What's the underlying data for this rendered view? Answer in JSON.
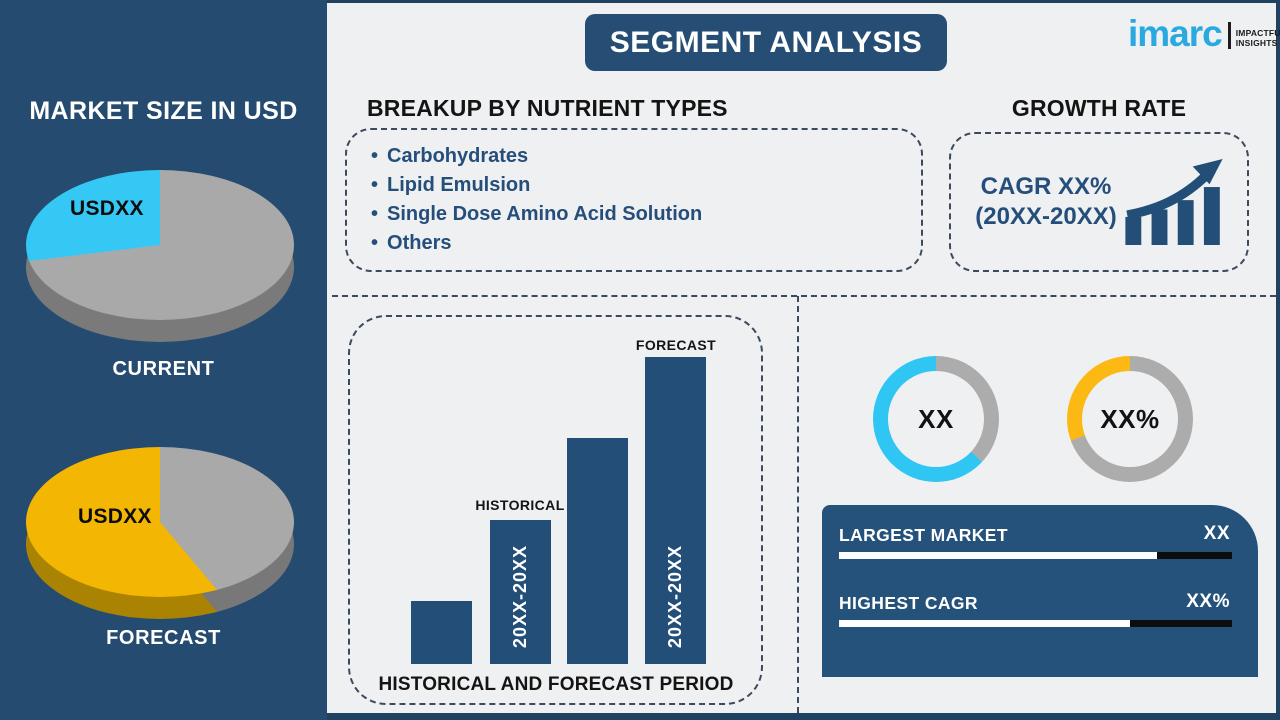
{
  "colors": {
    "background": "#eff0f1",
    "navy": "#254b70",
    "bar_navy": "#224e77",
    "cyan": "#35c8f4",
    "yellow": "#f3b602",
    "donut_yellow": "#fcb813",
    "gray": "#a9a9a9",
    "pie_side_gray": "#7a7a7a",
    "pie_side_yellow": "#ab8302",
    "text_navy": "#254e7b",
    "logo_blue": "#29a9e0"
  },
  "header": {
    "title": "SEGMENT ANALYSIS"
  },
  "logo": {
    "brand": "imarc",
    "tagline1": "IMPACTFUL",
    "tagline2": "INSIGHTS"
  },
  "sidebar": {
    "title": "MARKET SIZE IN USD",
    "pies": [
      {
        "label": "CURRENT",
        "value": "USDXX",
        "base": "#a9a9a9",
        "base_dark": "#7a7a7a",
        "slice": {
          "color": "#35c8f4",
          "from": 263
        },
        "slice_dark": "#7a7a7a"
      },
      {
        "label": "FORECAST",
        "value": "USDXX",
        "base": "#a9a9a9",
        "base_dark": "#787878",
        "slice": {
          "color": "#f3b602",
          "from": 140
        },
        "slice_dark": "#ab8302"
      }
    ]
  },
  "breakup": {
    "title": "BREAKUP BY NUTRIENT TYPES",
    "bullet": "•",
    "items": [
      "Carbohydrates",
      "Lipid Emulsion",
      "Single Dose Amino Acid Solution",
      "Others"
    ]
  },
  "growth": {
    "title": "GROWTH RATE",
    "line1": "CAGR XX%",
    "line2": "(20XX-20XX)"
  },
  "timeline": {
    "annotation_historical": "HISTORICAL",
    "annotation_forecast": "FORECAST",
    "bar_label": "20XX-20XX",
    "title": "HISTORICAL AND FORECAST PERIOD"
  },
  "donuts": [
    {
      "value": "XX",
      "color": "#2fc6f3",
      "gray": "#acacac",
      "gray_to": 133
    },
    {
      "value": "XX%",
      "color": "#fcb813",
      "gray": "#acacac",
      "gray_to": 250
    }
  ],
  "summary": {
    "rows": [
      {
        "label": "LARGEST MARKET",
        "value": "XX",
        "fill_pct": 81
      },
      {
        "label": "HIGHEST CAGR",
        "value": "XX%",
        "fill_pct": 74
      }
    ]
  },
  "chart_data": [
    {
      "type": "pie",
      "title": "MARKET SIZE IN USD — CURRENT",
      "slices": [
        {
          "label": "USDXX",
          "pct": 27,
          "color": "#35c8f4"
        },
        {
          "label": "",
          "pct": 73,
          "color": "#a9a9a9"
        }
      ],
      "note": "3D placeholder pie"
    },
    {
      "type": "pie",
      "title": "MARKET SIZE IN USD — FORECAST",
      "slices": [
        {
          "label": "USDXX",
          "pct": 61,
          "color": "#f3b602"
        },
        {
          "label": "",
          "pct": 39,
          "color": "#a9a9a9"
        }
      ],
      "note": "3D placeholder pie"
    },
    {
      "type": "bar",
      "title": "HISTORICAL AND FORECAST PERIOD",
      "categories": [
        "",
        "20XX-20XX",
        "",
        "20XX-20XX"
      ],
      "annotations": [
        "",
        "HISTORICAL",
        "",
        "FORECAST"
      ],
      "values": [
        63,
        144,
        226,
        307
      ],
      "bar_color": "#224e77",
      "note": "placeholder ascending bars, values are relative pixel heights"
    },
    {
      "type": "donut",
      "label": "XX",
      "pct_colored": 63,
      "color": "#2fc6f3"
    },
    {
      "type": "donut",
      "label": "XX%",
      "pct_colored": 31,
      "color": "#fcb813"
    }
  ]
}
